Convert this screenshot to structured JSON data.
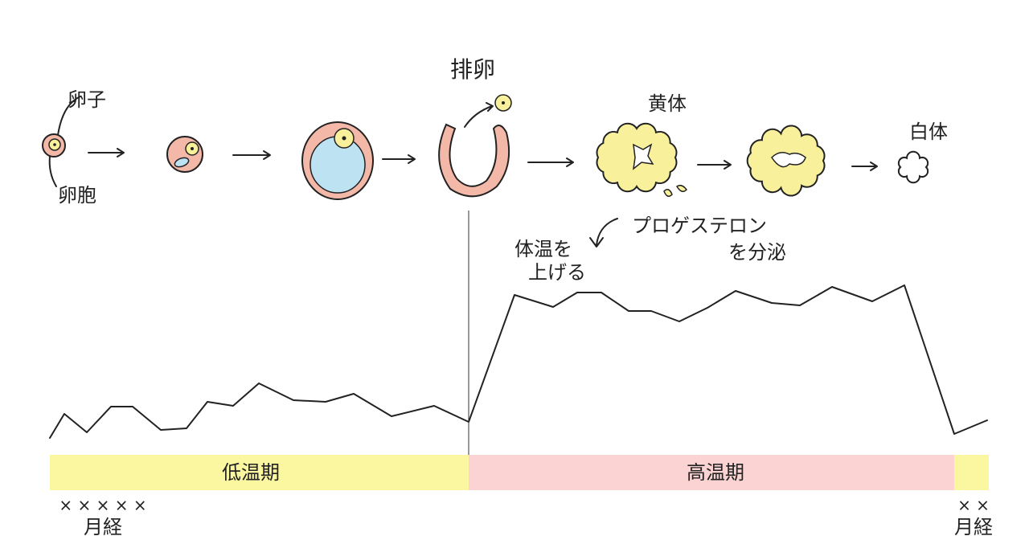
{
  "stages": {
    "egg": "卵子",
    "follicle": "卵胞",
    "ovulation": "排卵",
    "corpus_luteum": "黄体",
    "corpus_albicans": "白体"
  },
  "annotations": {
    "progesterone": "プロゲステロン",
    "secrete": "を分泌",
    "raise_temp_1": "体温を",
    "raise_temp_2": "上げる"
  },
  "phases": {
    "low": "低温期",
    "high": "高温期"
  },
  "menstruation": [
    {
      "marks": "× × × × ×",
      "label": "月経"
    },
    {
      "marks": "× ×",
      "label": "月経"
    }
  ]
}
